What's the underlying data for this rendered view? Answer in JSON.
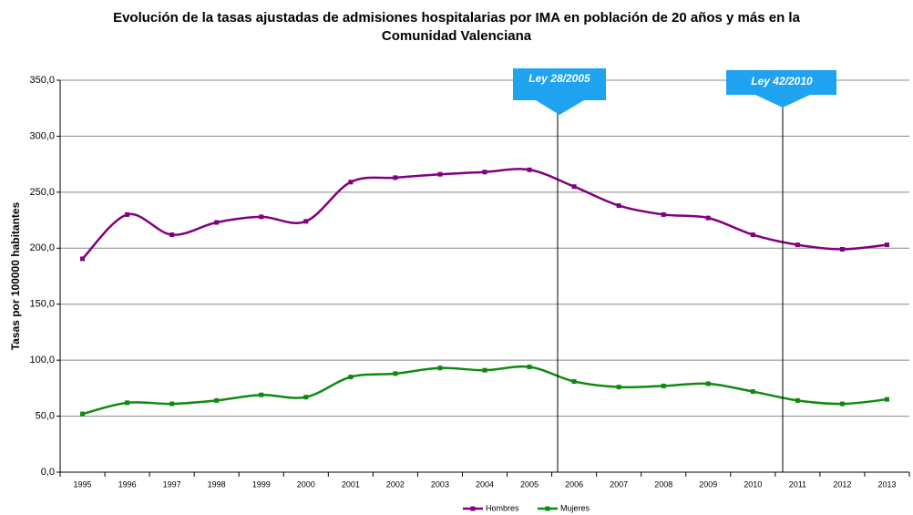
{
  "chart_data": {
    "type": "line",
    "title": "Evolución de la tasas ajustadas de admisiones hospitalarias por IMA en población de 20 años y más  en la Comunidad Valenciana",
    "ylabel": "Tasas por 100000 habitantes",
    "categories": [
      "1995",
      "1996",
      "1997",
      "1998",
      "1999",
      "2000",
      "2001",
      "2002",
      "2003",
      "2004",
      "2005",
      "2006",
      "2007",
      "2008",
      "2009",
      "2010",
      "2011",
      "2012",
      "2013"
    ],
    "series": [
      {
        "name": "Hombres",
        "color": "#800080",
        "values": [
          190.5,
          230,
          212,
          223,
          228,
          224,
          259,
          263,
          266,
          268,
          270,
          255,
          238,
          230,
          227,
          212,
          203,
          199,
          203
        ]
      },
      {
        "name": "Mujeres",
        "color": "#0f8a0f",
        "values": [
          52,
          62,
          61,
          64,
          69,
          67,
          85,
          88,
          93,
          91,
          94,
          81,
          76,
          77,
          79,
          72,
          64,
          61,
          65
        ]
      }
    ],
    "ylim": [
      0,
      350
    ],
    "yticks": [
      {
        "value": 0,
        "label": "0,0"
      },
      {
        "value": 50,
        "label": "50,0"
      },
      {
        "value": 100,
        "label": "100,0"
      },
      {
        "value": 150,
        "label": "150,0"
      },
      {
        "value": 200,
        "label": "200,0"
      },
      {
        "value": 250,
        "label": "250,0"
      },
      {
        "value": 300,
        "label": "300,0"
      },
      {
        "value": 350,
        "label": "350,0"
      }
    ],
    "grid": true,
    "legend": "bottom",
    "annotations": [
      "Ley 28/2005",
      "Ley 42/2010"
    ]
  }
}
